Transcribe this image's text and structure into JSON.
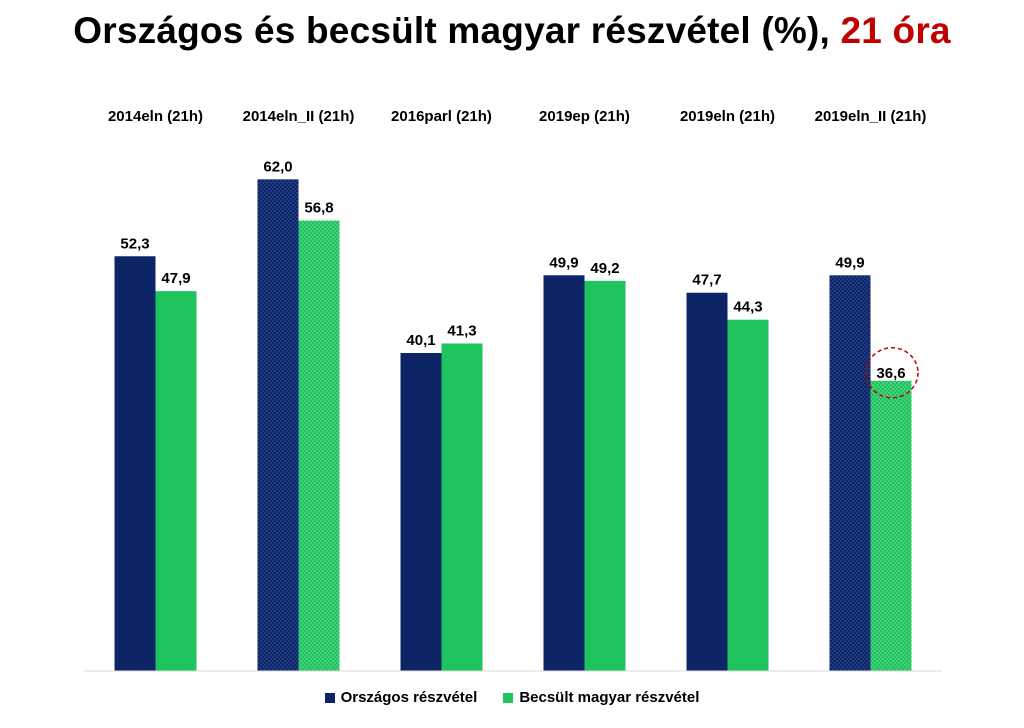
{
  "title": {
    "main": "Országos és becsült magyar részvétel (%),",
    "accent": "21 óra",
    "accent_color": "#c00000"
  },
  "colors": {
    "national": "#0d2566",
    "estimated": "#1fc45e",
    "highlight_circle": "#c00000"
  },
  "legend": {
    "national_label": "Országos részvétel",
    "estimated_label": "Becsült magyar részvétel"
  },
  "chart_data": {
    "type": "bar",
    "categories": [
      "2014eln (21h)",
      "2014eln_II (21h)",
      "2016parl (21h)",
      "2019ep (21h)",
      "2019eln (21h)",
      "2019eln_II (21h)"
    ],
    "series": [
      {
        "name": "Országos részvétel",
        "values": [
          52.3,
          62.0,
          40.1,
          49.9,
          47.7,
          49.9
        ],
        "labels": [
          "52,3",
          "62,0",
          "40,1",
          "49,9",
          "47,7",
          "49,9"
        ]
      },
      {
        "name": "Becsült magyar részvétel",
        "values": [
          47.9,
          56.8,
          41.3,
          49.2,
          44.3,
          36.6
        ],
        "labels": [
          "47,9",
          "56,8",
          "41,3",
          "49,2",
          "44,3",
          "36,6"
        ]
      }
    ],
    "patterned_categories": [
      "2014eln_II (21h)",
      "2019eln_II (21h)"
    ],
    "highlighted": {
      "series": 1,
      "category": 5
    },
    "ylim": [
      0,
      66
    ],
    "category_labels_position": "top",
    "legend_position": "bottom",
    "grid": false
  }
}
